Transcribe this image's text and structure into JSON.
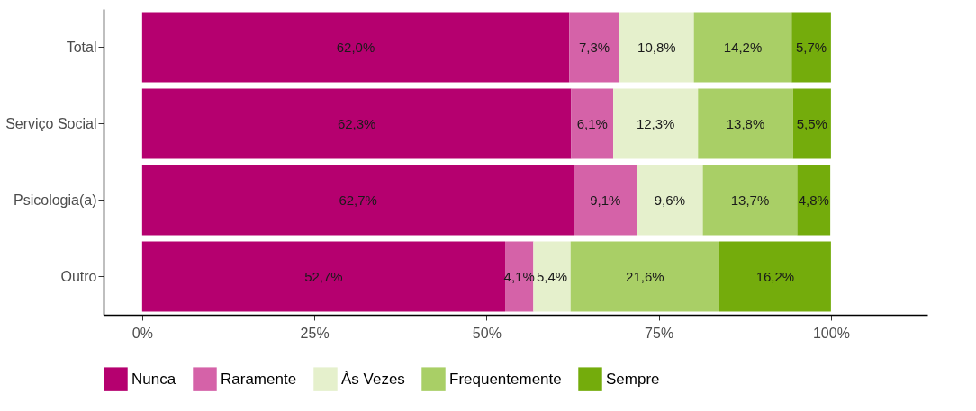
{
  "chart_data": {
    "type": "bar",
    "orientation": "horizontal",
    "stacked": true,
    "categories": [
      "Total",
      "Serviço Social",
      "Psicologia(a)",
      "Outro"
    ],
    "series": [
      {
        "name": "Nunca",
        "color": "#b5006f",
        "values": [
          62.0,
          62.3,
          62.7,
          52.7
        ],
        "value_labels": [
          "62,0%",
          "62,3%",
          "62,7%",
          "52,7%"
        ]
      },
      {
        "name": "Raramente",
        "color": "#d562a8",
        "values": [
          7.3,
          6.1,
          9.1,
          4.1
        ],
        "value_labels": [
          "7,3%",
          "6,1%",
          "9,1%",
          "4,1%"
        ]
      },
      {
        "name": "Às Vezes",
        "color": "#e5f0cc",
        "values": [
          10.8,
          12.3,
          9.6,
          5.4
        ],
        "value_labels": [
          "10,8%",
          "12,3%",
          "9,6%",
          "5,4%"
        ]
      },
      {
        "name": "Frequentemente",
        "color": "#a9cf66",
        "values": [
          14.2,
          13.8,
          13.7,
          21.6
        ],
        "value_labels": [
          "14,2%",
          "13,8%",
          "13,7%",
          "21,6%"
        ]
      },
      {
        "name": "Sempre",
        "color": "#74ac0c",
        "values": [
          5.7,
          5.5,
          4.8,
          16.2
        ],
        "value_labels": [
          "5,7%",
          "5,5%",
          "4,8%",
          "16,2%"
        ]
      }
    ],
    "xlim": [
      -5.6,
      114
    ],
    "xticks": [
      {
        "value": 0,
        "label": "0%"
      },
      {
        "value": 25,
        "label": "25%"
      },
      {
        "value": 50,
        "label": "50%"
      },
      {
        "value": 75,
        "label": "75%"
      },
      {
        "value": 100,
        "label": "100%"
      }
    ],
    "grid": false,
    "legend": "bottom"
  }
}
